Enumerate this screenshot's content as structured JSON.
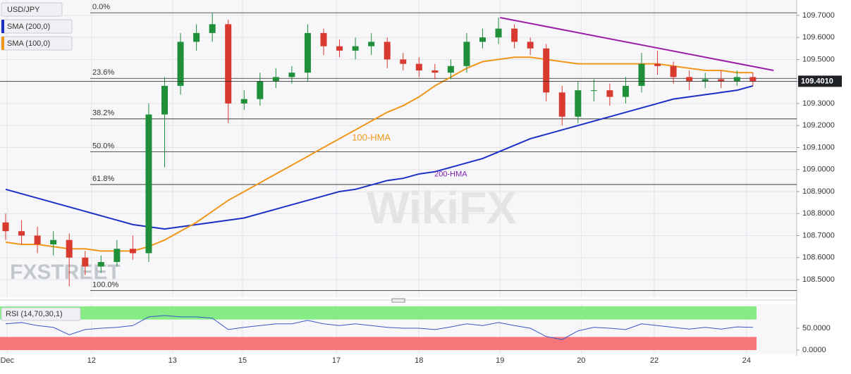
{
  "chart_data": [
    {
      "type": "candlestick",
      "title": "USD/JPY",
      "up_color": "#1f8f3a",
      "down_color": "#d93a2f",
      "xlim": [
        -0.355,
        49.756
      ],
      "xticks": [
        {
          "value": 0.1,
          "label": "Dec"
        },
        {
          "value": 5.4,
          "label": "12"
        },
        {
          "value": 10.5,
          "label": "13"
        },
        {
          "value": 14.9,
          "label": "15"
        },
        {
          "value": 20.8,
          "label": "17"
        },
        {
          "value": 26.0,
          "label": "18"
        },
        {
          "value": 31.1,
          "label": "19"
        },
        {
          "value": 36.2,
          "label": "20"
        },
        {
          "value": 40.8,
          "label": "22"
        },
        {
          "value": 46.6,
          "label": "24"
        }
      ],
      "ylim": [
        108.42,
        109.77
      ],
      "yticks": [
        {
          "value": 108.5,
          "label": "108.5000"
        },
        {
          "value": 108.6,
          "label": "108.6000"
        },
        {
          "value": 108.7,
          "label": "108.7000"
        },
        {
          "value": 108.8,
          "label": "108.8000"
        },
        {
          "value": 108.9,
          "label": "108.9000"
        },
        {
          "value": 109.0,
          "label": "109.0000"
        },
        {
          "value": 109.1,
          "label": "109.1000"
        },
        {
          "value": 109.2,
          "label": "109.2000"
        },
        {
          "value": 109.3,
          "label": "109.3000"
        },
        {
          "value": 109.4,
          "label": "109.4000"
        },
        {
          "value": 109.5,
          "label": "109.5000"
        },
        {
          "value": 109.6,
          "label": "109.6000"
        },
        {
          "value": 109.7,
          "label": "109.7000"
        }
      ],
      "grid": true,
      "open": [
        108.76,
        108.72,
        108.7,
        108.66,
        108.68,
        108.6,
        108.56,
        108.58,
        108.64,
        108.62,
        109.25,
        109.38,
        109.58,
        109.62,
        109.66,
        109.3,
        109.32,
        109.4,
        109.42,
        109.44,
        109.62,
        109.56,
        109.54,
        109.56,
        109.58,
        109.5,
        109.48,
        109.45,
        109.44,
        109.47,
        109.58,
        109.6,
        109.64,
        109.58,
        109.55,
        109.35,
        109.24,
        109.36,
        109.36,
        109.33,
        109.38,
        109.48,
        109.47,
        109.42,
        109.4,
        109.41,
        109.4,
        109.42
      ],
      "high": [
        108.8,
        108.77,
        108.74,
        108.72,
        108.71,
        108.63,
        108.61,
        108.68,
        108.7,
        109.3,
        109.42,
        109.62,
        109.66,
        109.71,
        109.68,
        109.36,
        109.44,
        109.46,
        109.47,
        109.66,
        109.64,
        109.59,
        109.6,
        109.62,
        109.6,
        109.53,
        109.51,
        109.48,
        109.5,
        109.62,
        109.64,
        109.69,
        109.66,
        109.6,
        109.57,
        109.38,
        109.4,
        109.41,
        109.39,
        109.42,
        109.53,
        109.54,
        109.49,
        109.45,
        109.44,
        109.45,
        109.45,
        109.44
      ],
      "low": [
        108.68,
        108.66,
        108.62,
        108.61,
        108.47,
        108.52,
        108.53,
        108.56,
        108.59,
        108.58,
        109.01,
        109.34,
        109.54,
        109.58,
        109.21,
        109.27,
        109.29,
        109.37,
        109.39,
        109.4,
        109.52,
        109.51,
        109.5,
        109.52,
        109.46,
        109.45,
        109.42,
        109.41,
        109.41,
        109.44,
        109.55,
        109.57,
        109.55,
        109.52,
        109.31,
        109.2,
        109.21,
        109.31,
        109.29,
        109.3,
        109.35,
        109.43,
        109.39,
        109.36,
        109.37,
        109.37,
        109.38,
        109.38
      ],
      "close": [
        108.72,
        108.7,
        108.66,
        108.68,
        108.6,
        108.56,
        108.58,
        108.64,
        108.62,
        109.25,
        109.38,
        109.58,
        109.62,
        109.66,
        109.3,
        109.32,
        109.4,
        109.42,
        109.44,
        109.62,
        109.56,
        109.54,
        109.56,
        109.58,
        109.5,
        109.48,
        109.45,
        109.44,
        109.47,
        109.58,
        109.6,
        109.64,
        109.58,
        109.55,
        109.35,
        109.24,
        109.36,
        109.36,
        109.33,
        109.38,
        109.48,
        109.47,
        109.42,
        109.4,
        109.41,
        109.4,
        109.42,
        109.4
      ],
      "series": [
        {
          "name": "SMA (200,0)",
          "annotation": "200-HMA",
          "color": "#1c2fc4",
          "values": [
            108.91,
            108.89,
            108.87,
            108.85,
            108.83,
            108.81,
            108.79,
            108.77,
            108.75,
            108.74,
            108.73,
            108.74,
            108.75,
            108.76,
            108.77,
            108.78,
            108.8,
            108.82,
            108.84,
            108.86,
            108.88,
            108.9,
            108.91,
            108.93,
            108.95,
            108.96,
            108.98,
            108.99,
            109.01,
            109.03,
            109.05,
            109.08,
            109.11,
            109.14,
            109.16,
            109.18,
            109.2,
            109.22,
            109.24,
            109.26,
            109.28,
            109.3,
            109.32,
            109.33,
            109.34,
            109.35,
            109.36,
            109.38
          ]
        },
        {
          "name": "SMA (100,0)",
          "annotation": "100-HMA",
          "color": "#f0961a",
          "values": [
            108.67,
            108.66,
            108.66,
            108.65,
            108.64,
            108.64,
            108.63,
            108.63,
            108.63,
            108.65,
            108.68,
            108.72,
            108.76,
            108.81,
            108.86,
            108.9,
            108.94,
            108.98,
            109.02,
            109.06,
            109.1,
            109.14,
            109.18,
            109.22,
            109.26,
            109.29,
            109.33,
            109.38,
            109.42,
            109.46,
            109.49,
            109.5,
            109.51,
            109.51,
            109.5,
            109.49,
            109.48,
            109.48,
            109.48,
            109.48,
            109.48,
            109.48,
            109.47,
            109.46,
            109.45,
            109.45,
            109.44,
            109.44
          ]
        }
      ],
      "fibonacci": [
        {
          "value": 109.712,
          "label": "0.0%"
        },
        {
          "value": 109.414,
          "label": "23.6%"
        },
        {
          "value": 109.23,
          "label": "38.2%"
        },
        {
          "value": 109.081,
          "label": "50.0%"
        },
        {
          "value": 108.932,
          "label": "61.8%"
        },
        {
          "value": 108.45,
          "label": "100.0%"
        }
      ],
      "trendline": {
        "color": "#9a1fa6",
        "x": [
          31.1,
          48.3
        ],
        "values": [
          109.69,
          109.45
        ]
      },
      "last_price": {
        "value": 109.401,
        "label": "109.4010"
      },
      "watermark": "FXSTREET",
      "watermark_2": "WikiFX"
    },
    {
      "type": "line",
      "title": "RSI (14,70,30,1)",
      "color": "#3a55c8",
      "ylim": [
        0,
        100
      ],
      "yticks": [
        {
          "value": 0,
          "label": "0.0000"
        },
        {
          "value": 50,
          "label": "50.0000"
        }
      ],
      "overbought": 70,
      "oversold": 30,
      "values": [
        60,
        63,
        56,
        52,
        35,
        47,
        50,
        52,
        56,
        76,
        79,
        76,
        76,
        73,
        47,
        52,
        56,
        60,
        60,
        68,
        60,
        56,
        60,
        56,
        52,
        50,
        50,
        47,
        53,
        60,
        56,
        63,
        56,
        50,
        31,
        24,
        44,
        52,
        50,
        47,
        60,
        56,
        52,
        48,
        52,
        48,
        53,
        52
      ]
    }
  ]
}
